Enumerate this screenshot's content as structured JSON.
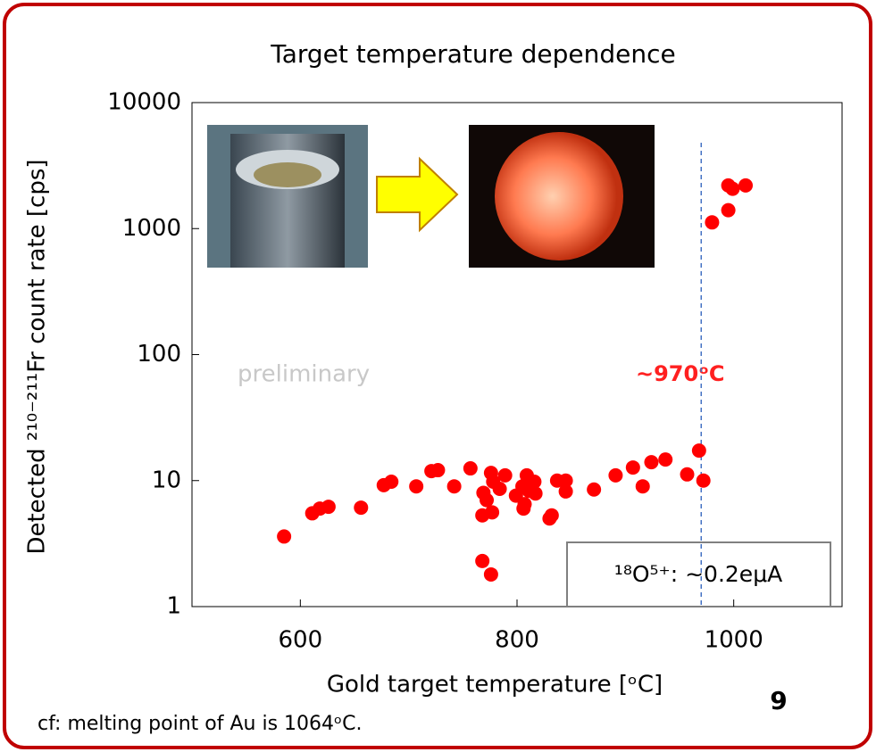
{
  "chart_data": {
    "type": "scatter",
    "title": "Target temperature dependence",
    "x_label": "Gold target temperature [ᵒC]",
    "y_label": "Detected ²¹⁰⁻²¹¹Fr count rate [cps]",
    "x": [
      585,
      611,
      618,
      626,
      656,
      677,
      684,
      707,
      721,
      727,
      742,
      757,
      768,
      776,
      769,
      768,
      772,
      776,
      778,
      777,
      784,
      789,
      799,
      805,
      809,
      807,
      811,
      816,
      817,
      806,
      832,
      830,
      837,
      845,
      845,
      871,
      891,
      907,
      916,
      924,
      937,
      957,
      968,
      972,
      980,
      995,
      995,
      999,
      1011
    ],
    "values": [
      3.6,
      5.5,
      6.0,
      6.2,
      6.1,
      9.2,
      9.8,
      9.0,
      11.9,
      12.1,
      9.0,
      12.5,
      2.3,
      1.8,
      8.0,
      5.3,
      7.0,
      11.5,
      9.8,
      5.6,
      8.6,
      11.0,
      7.6,
      9.0,
      11.0,
      6.5,
      8.3,
      9.8,
      7.9,
      6.0,
      5.3,
      5.0,
      10.0,
      10.0,
      8.2,
      8.5,
      11.0,
      12.7,
      9.0,
      14.0,
      14.7,
      11.2,
      17.3,
      10.0,
      1120,
      1400,
      2200,
      2070,
      2200
    ],
    "color": "#ff0000",
    "xlim": [
      500,
      1100
    ],
    "xticks": [
      600,
      800,
      1000
    ],
    "ylim": [
      1,
      10000
    ],
    "yticks": [
      1,
      10,
      100,
      1000,
      10000
    ],
    "log_y": true,
    "vline": 970,
    "annotations": {
      "vline_label": "~970ᵒC",
      "watermark": "preliminary",
      "beam": "¹⁸O⁵⁺: ~0.2eμA"
    }
  },
  "slide": {
    "number": "9",
    "note": "cf: melting point of Au is 1064ᵒC."
  }
}
